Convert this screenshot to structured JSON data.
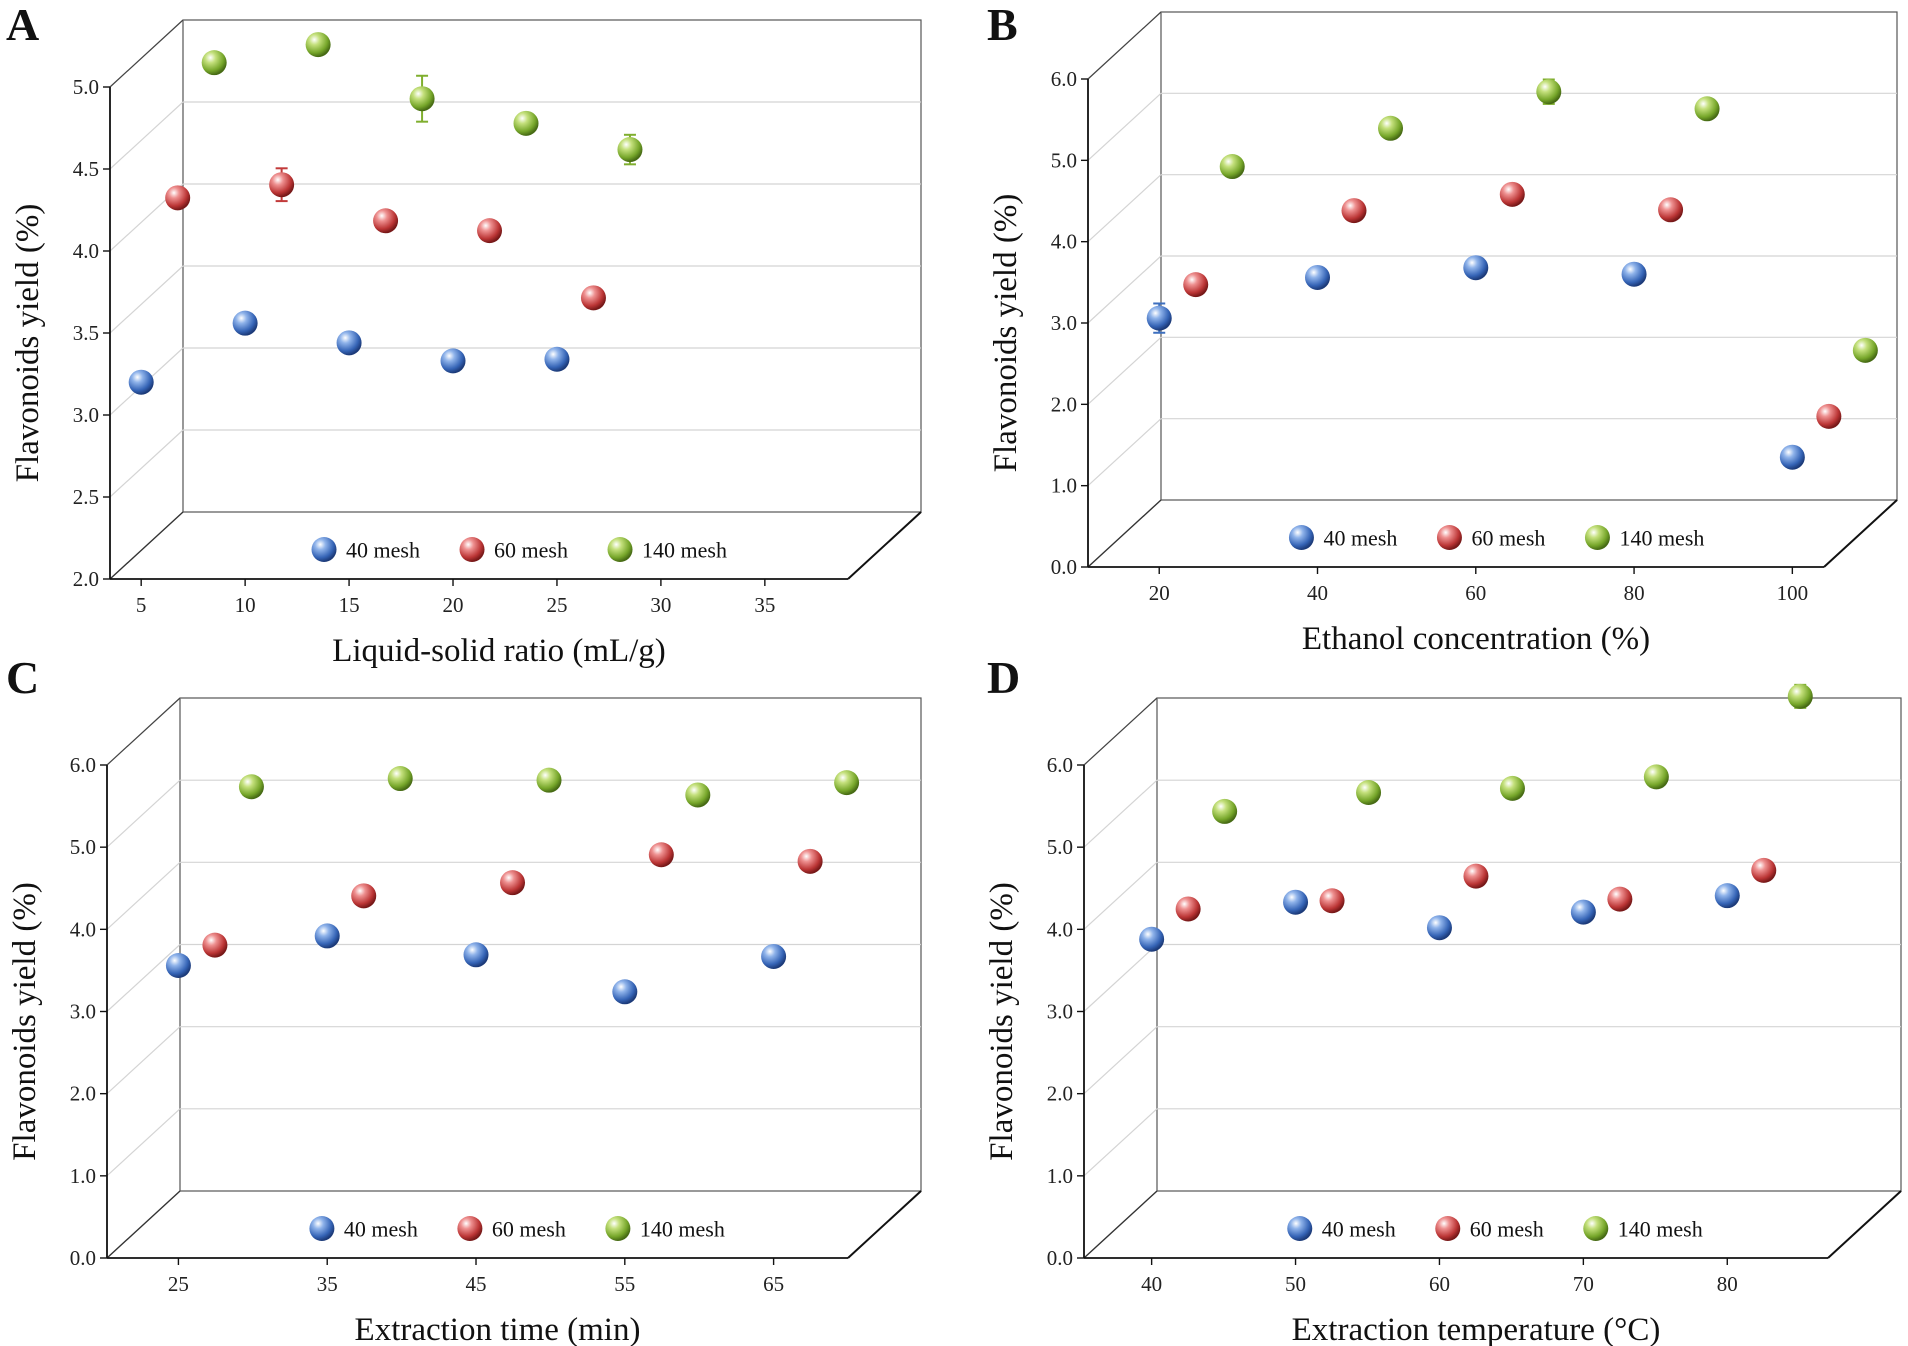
{
  "colors": {
    "40 mesh": "#3d6fbf",
    "60 mesh": "#c23a3a",
    "140 mesh": "#7fae2e"
  },
  "chart_data": [
    {
      "panel": "A",
      "type": "scatter",
      "xlabel": "Liquid-solid ratio (mL/g)",
      "ylabel": "Flavonoids yield (%)",
      "xticks": [
        5,
        10,
        15,
        20,
        25,
        30,
        35
      ],
      "xlim": [
        3.5,
        39
      ],
      "yticks": [
        "2.0",
        "2.5",
        "3.0",
        "3.5",
        "4.0",
        "4.5",
        "5.0"
      ],
      "ylim": [
        2.0,
        5.0
      ],
      "legend": [
        "40 mesh",
        "60 mesh",
        "140 mesh"
      ],
      "series": [
        {
          "name": "40 mesh",
          "x": [
            5,
            10,
            15,
            20,
            25
          ],
          "y": [
            3.2,
            3.56,
            3.44,
            3.33,
            3.34
          ],
          "err": [
            0,
            0,
            0,
            0,
            0
          ]
        },
        {
          "name": "60 mesh",
          "x": [
            5,
            10,
            15,
            20,
            25
          ],
          "y": [
            4.12,
            4.2,
            3.98,
            3.92,
            3.51
          ],
          "err": [
            0,
            0.1,
            0,
            0,
            0
          ]
        },
        {
          "name": "140 mesh",
          "x": [
            5,
            10,
            15,
            20,
            25
          ],
          "y": [
            4.74,
            4.85,
            4.52,
            4.37,
            4.21
          ],
          "err": [
            0,
            0,
            0.14,
            0.06,
            0.09
          ]
        }
      ]
    },
    {
      "panel": "B",
      "type": "scatter",
      "xlabel": "Ethanol concentration (%)",
      "ylabel": "Flavonoids yield (%)",
      "xticks": [
        20,
        40,
        60,
        80,
        100
      ],
      "xlim": [
        11,
        104
      ],
      "yticks": [
        "0.0",
        "1.0",
        "2.0",
        "3.0",
        "4.0",
        "5.0",
        "6.0"
      ],
      "ylim": [
        0.0,
        6.0
      ],
      "legend": [
        "40 mesh",
        "60 mesh",
        "140 mesh"
      ],
      "series": [
        {
          "name": "40 mesh",
          "x": [
            20,
            40,
            60,
            80,
            100
          ],
          "y": [
            3.06,
            3.56,
            3.68,
            3.6,
            1.35
          ],
          "err": [
            0.18,
            0,
            0,
            0,
            0
          ]
        },
        {
          "name": "60 mesh",
          "x": [
            20,
            40,
            60,
            80,
            100
          ],
          "y": [
            3.06,
            3.97,
            4.17,
            3.98,
            1.44
          ],
          "err": [
            0,
            0,
            0,
            0,
            0
          ]
        },
        {
          "name": "140 mesh",
          "x": [
            20,
            40,
            60,
            80,
            100
          ],
          "y": [
            4.1,
            4.57,
            5.02,
            4.81,
            1.84
          ],
          "err": [
            0,
            0,
            0.15,
            0,
            0
          ]
        }
      ]
    },
    {
      "panel": "C",
      "type": "scatter",
      "xlabel": "Extraction time (min)",
      "ylabel": "Flavonoids yield (%)",
      "xticks": [
        25,
        35,
        45,
        55,
        65
      ],
      "xlim": [
        20.2,
        70
      ],
      "yticks": [
        "0.0",
        "1.0",
        "2.0",
        "3.0",
        "4.0",
        "5.0",
        "6.0"
      ],
      "ylim": [
        0.0,
        6.0
      ],
      "legend": [
        "40 mesh",
        "60 mesh",
        "140 mesh"
      ],
      "series": [
        {
          "name": "40 mesh",
          "x": [
            25,
            35,
            45,
            55,
            65
          ],
          "y": [
            3.56,
            3.92,
            3.69,
            3.24,
            3.67
          ],
          "err": [
            0,
            0,
            0,
            0,
            0
          ]
        },
        {
          "name": "60 mesh",
          "x": [
            25,
            35,
            45,
            55,
            65
          ],
          "y": [
            3.4,
            4.0,
            4.16,
            4.5,
            4.42
          ],
          "err": [
            0,
            0,
            0,
            0,
            0
          ]
        },
        {
          "name": "140 mesh",
          "x": [
            25,
            35,
            45,
            55,
            65
          ],
          "y": [
            4.92,
            5.02,
            5.0,
            4.82,
            4.97
          ],
          "err": [
            0,
            0,
            0,
            0,
            0
          ]
        }
      ]
    },
    {
      "panel": "D",
      "type": "scatter",
      "xlabel": "Extraction temperature (°C)",
      "ylabel": "Flavonoids yield (%)",
      "xticks": [
        40,
        50,
        60,
        70,
        80
      ],
      "xlim": [
        35.3,
        87
      ],
      "yticks": [
        "0.0",
        "1.0",
        "2.0",
        "3.0",
        "4.0",
        "5.0",
        "6.0"
      ],
      "ylim": [
        0.0,
        6.0
      ],
      "legend": [
        "40 mesh",
        "60 mesh",
        "140 mesh"
      ],
      "series": [
        {
          "name": "40 mesh",
          "x": [
            40,
            50,
            60,
            70,
            80
          ],
          "y": [
            3.88,
            4.33,
            4.02,
            4.21,
            4.41
          ],
          "err": [
            0,
            0,
            0,
            0,
            0
          ]
        },
        {
          "name": "60 mesh",
          "x": [
            40,
            50,
            60,
            70,
            80
          ],
          "y": [
            3.84,
            3.94,
            4.24,
            3.96,
            4.31
          ],
          "err": [
            0,
            0,
            0,
            0,
            0
          ]
        },
        {
          "name": "140 mesh",
          "x": [
            40,
            50,
            60,
            70,
            80
          ],
          "y": [
            4.62,
            4.85,
            4.9,
            5.04,
            6.02
          ],
          "err": [
            0,
            0,
            0,
            0,
            0.14
          ]
        }
      ]
    }
  ]
}
